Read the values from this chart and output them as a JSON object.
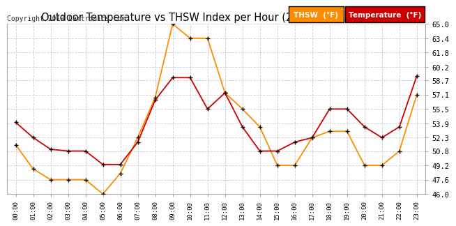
{
  "title": "Outdoor Temperature vs THSW Index per Hour (24 Hours) 20190527",
  "copyright": "Copyright 2019 Cartronics.com",
  "hours": [
    "00:00",
    "01:00",
    "02:00",
    "03:00",
    "04:00",
    "05:00",
    "06:00",
    "07:00",
    "08:00",
    "09:00",
    "10:00",
    "11:00",
    "12:00",
    "13:00",
    "14:00",
    "15:00",
    "16:00",
    "17:00",
    "18:00",
    "19:00",
    "20:00",
    "21:00",
    "22:00",
    "23:00"
  ],
  "temperature": [
    54.0,
    52.3,
    51.0,
    50.8,
    50.8,
    49.3,
    49.3,
    51.8,
    56.5,
    59.0,
    59.0,
    55.5,
    57.3,
    53.5,
    50.8,
    50.8,
    51.8,
    52.3,
    55.5,
    55.5,
    53.5,
    52.3,
    53.5,
    59.2
  ],
  "thsw": [
    51.5,
    48.8,
    47.6,
    47.6,
    47.6,
    46.0,
    48.3,
    52.3,
    56.8,
    65.0,
    63.4,
    63.4,
    57.3,
    55.5,
    53.5,
    49.2,
    49.2,
    52.3,
    53.0,
    53.0,
    49.2,
    49.2,
    50.8,
    57.1
  ],
  "temp_color": "#cc0000",
  "thsw_color": "#ff8c00",
  "marker_color": "#000000",
  "ylim_min": 46.0,
  "ylim_max": 65.0,
  "yticks": [
    46.0,
    47.6,
    49.2,
    50.8,
    52.3,
    53.9,
    55.5,
    57.1,
    58.7,
    60.2,
    61.8,
    63.4,
    65.0
  ],
  "grid_color": "#cccccc",
  "background_color": "#ffffff",
  "legend_thsw_bg": "#ff8c00",
  "legend_temp_bg": "#cc0000",
  "legend_thsw_text": "THSW  (°F)",
  "legend_temp_text": "Temperature  (°F)"
}
